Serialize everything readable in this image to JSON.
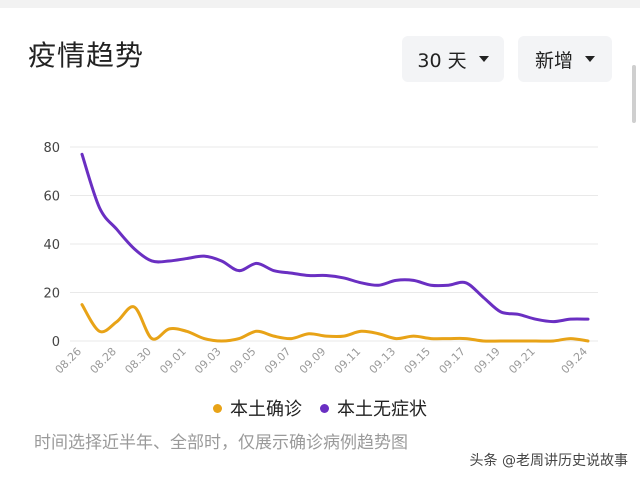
{
  "title": "疫情趋势",
  "controls": {
    "range_label": "30 天",
    "metric_label": "新增"
  },
  "note": "时间选择近半年、全部时，仅展示确诊病例趋势图",
  "watermark": "头条 @老周讲历史说故事",
  "colors": {
    "local_confirmed": "#e8a317",
    "local_asymptomatic": "#6a2fc2",
    "grid": "#e9e9e9",
    "axis_text": "#444444",
    "tick_text": "#9a9a9a"
  },
  "chart_data": {
    "type": "line",
    "title": "",
    "xlabel": "",
    "ylabel": "",
    "ylim": [
      0,
      80
    ],
    "yticks": [
      0,
      20,
      40,
      60,
      80
    ],
    "grid": true,
    "legend_position": "bottom",
    "x": [
      "08.26",
      "08.27",
      "08.28",
      "08.29",
      "08.30",
      "08.31",
      "09.01",
      "09.02",
      "09.03",
      "09.04",
      "09.05",
      "09.06",
      "09.07",
      "09.08",
      "09.09",
      "09.10",
      "09.11",
      "09.12",
      "09.13",
      "09.14",
      "09.15",
      "09.16",
      "09.17",
      "09.18",
      "09.19",
      "09.20",
      "09.21",
      "09.22",
      "09.23",
      "09.24"
    ],
    "xtick_labels": [
      "08.26",
      "08.28",
      "08.30",
      "09.01",
      "09.03",
      "09.05",
      "09.07",
      "09.09",
      "09.11",
      "09.13",
      "09.15",
      "09.17",
      "09.19",
      "09.21",
      "09.24"
    ],
    "series": [
      {
        "name": "本土确诊",
        "color": "#e8a317",
        "values": [
          15,
          4,
          8,
          14,
          1,
          5,
          4,
          1,
          0,
          1,
          4,
          2,
          1,
          3,
          2,
          2,
          4,
          3,
          1,
          2,
          1,
          1,
          1,
          0,
          0,
          0,
          0,
          0,
          1,
          0
        ]
      },
      {
        "name": "本土无症状",
        "color": "#6a2fc2",
        "values": [
          77,
          55,
          46,
          38,
          33,
          33,
          34,
          35,
          33,
          29,
          32,
          29,
          28,
          27,
          27,
          26,
          24,
          23,
          25,
          25,
          23,
          23,
          24,
          18,
          12,
          11,
          9,
          8,
          9,
          9
        ]
      }
    ]
  }
}
